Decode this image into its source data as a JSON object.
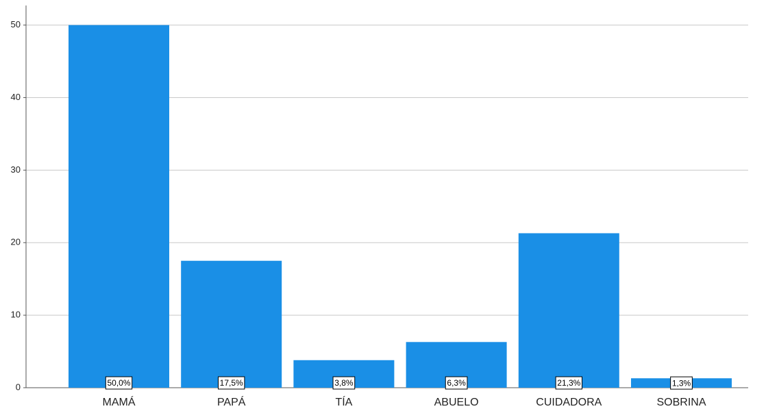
{
  "chart_data": {
    "type": "bar",
    "categories": [
      "MAMÁ",
      "PAPÁ",
      "TÍA",
      "ABUELO",
      "CUIDADORA",
      "SOBRINA"
    ],
    "values": [
      50,
      17.5,
      3.8,
      6.3,
      21.3,
      1.3
    ],
    "value_labels": [
      "50,0%",
      "17,5%",
      "3,8%",
      "6,3%",
      "21,3%",
      "1,3%"
    ],
    "color": "#1a8fe6",
    "ylim": [
      0,
      52.7
    ],
    "yticks": [
      0,
      10,
      20,
      30,
      40,
      50
    ],
    "grid": true
  }
}
